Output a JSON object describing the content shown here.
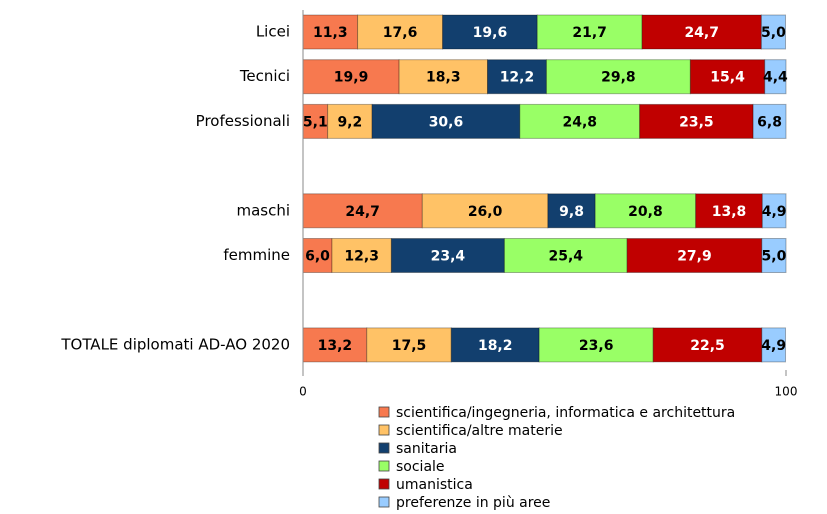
{
  "chart_data": {
    "type": "stacked-bar-horizontal",
    "categories": [
      "Licei",
      "Tecnici",
      "Professionali",
      null,
      "maschi",
      "femmine",
      null,
      "TOTALE diplomati AD-AO 2020"
    ],
    "series": [
      {
        "name": "scientifica/ingegneria, informatica e architettura",
        "color": "#f7794f",
        "values": [
          11.3,
          19.9,
          5.1,
          null,
          24.7,
          6.0,
          null,
          13.2
        ],
        "value_labels": [
          "11,3",
          "19,9",
          "5,1",
          null,
          "24,7",
          "6,0",
          null,
          "13,2"
        ]
      },
      {
        "name": "scientifica/altre materie",
        "color": "#ffc266",
        "values": [
          17.6,
          18.3,
          9.2,
          null,
          26.0,
          12.3,
          null,
          17.5
        ],
        "value_labels": [
          "17,6",
          "18,3",
          "9,2",
          null,
          "26,0",
          "12,3",
          null,
          "17,5"
        ]
      },
      {
        "name": "sanitaria",
        "color": "#123f6e",
        "values": [
          19.6,
          12.2,
          30.6,
          null,
          9.8,
          23.4,
          null,
          18.2
        ],
        "value_labels": [
          "19,6",
          "12,2",
          "30,6",
          null,
          "9,8",
          "23,4",
          null,
          "18,2"
        ]
      },
      {
        "name": "sociale",
        "color": "#99ff66",
        "values": [
          21.7,
          29.8,
          24.8,
          null,
          20.8,
          25.4,
          null,
          23.6
        ],
        "value_labels": [
          "21,7",
          "29,8",
          "24,8",
          null,
          "20,8",
          "25,4",
          null,
          "23,6"
        ]
      },
      {
        "name": "umanistica",
        "color": "#c00000",
        "values": [
          24.7,
          15.4,
          23.5,
          null,
          13.8,
          27.9,
          null,
          22.5
        ],
        "value_labels": [
          "24,7",
          "15,4",
          "23,5",
          null,
          "13,8",
          "27,9",
          null,
          "22,5"
        ]
      },
      {
        "name": "preferenze in più aree",
        "color": "#99ccff",
        "values": [
          5.0,
          4.4,
          6.8,
          null,
          4.9,
          5.0,
          null,
          4.9
        ],
        "value_labels": [
          "5,0",
          "4,4",
          "6,8",
          null,
          "4,9",
          "5,0",
          null,
          "4,9"
        ]
      }
    ],
    "xlim": [
      0,
      100
    ],
    "xticks": [
      0,
      100
    ],
    "legend": "bottom"
  }
}
